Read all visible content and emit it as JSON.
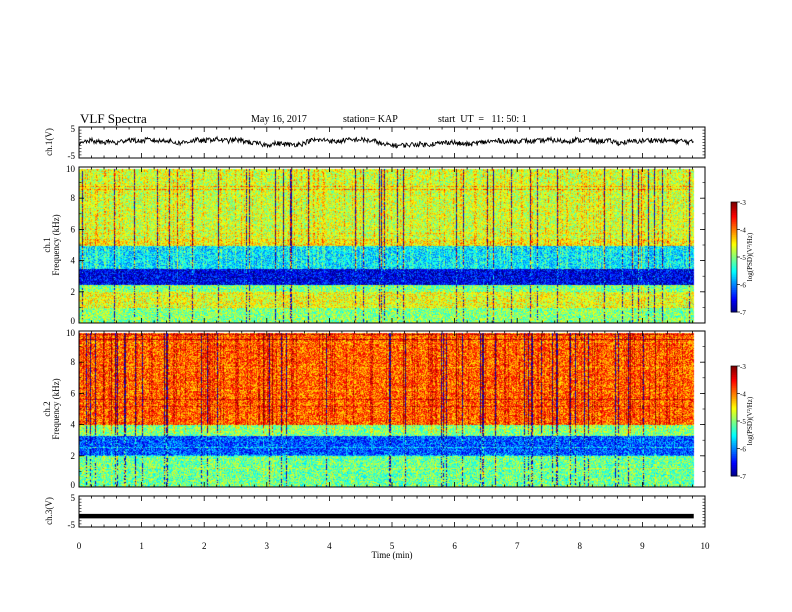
{
  "header": {
    "title": "VLF Spectra",
    "date": "May 16, 2017",
    "station": "station= KAP",
    "start": "start  UT  =   11: 50: 1"
  },
  "chart_data": [
    {
      "type": "line",
      "panel": "ch1-waveform",
      "ylabel": "ch.1(V)",
      "ylim": [
        -5,
        5
      ],
      "yticks": [
        "5",
        "-5"
      ],
      "series": [
        {
          "values": [
            -0.8,
            0.3,
            0.6,
            0.2,
            0.0,
            0.4,
            -0.3,
            0.5,
            1.0,
            0.6,
            0.4,
            0.9,
            0.7,
            0.5,
            0.8,
            0.2,
            -0.2,
            0.1,
            0.5,
            0.8,
            0.4,
            0.9,
            1.1,
            0.8,
            0.5,
            0.9,
            0.6,
            0.3,
            -0.2,
            -0.4,
            -0.8,
            -0.5,
            -0.3,
            -0.5,
            -0.7,
            -0.6,
            -0.4,
            0.5,
            0.8,
            0.7,
            0.9,
            0.2,
            0.4,
            0.9,
            0.7,
            1.0,
            0.8,
            0.5,
            0.3,
            -0.8,
            -0.7,
            -1.0,
            -0.9,
            -0.8,
            -0.6,
            -0.5,
            -0.7,
            -0.4,
            -0.3,
            0.0,
            0.2,
            -0.3,
            -0.5,
            -0.6,
            -0.2,
            0.1,
            0.3,
            0.4,
            0.6,
            0.2,
            0.3,
            0.6,
            0.5,
            0.3,
            0.5,
            0.7,
            0.8,
            0.6,
            0.4,
            0.5,
            0.9,
            0.6,
            0.8,
            0.4,
            0.5,
            0.6,
            0.3,
            -0.2,
            0.1,
            0.3,
            0.4,
            0.6,
            0.8,
            0.7,
            0.5,
            0.6,
            0.4,
            0.5,
            0.2,
            0.1
          ]
        }
      ]
    },
    {
      "type": "heatmap",
      "panel": "ch1-spectrogram",
      "ylabel": "ch.1 Frequency (kHz)",
      "ylim": [
        0,
        10
      ],
      "yticks": [
        "0",
        "2",
        "4",
        "6",
        "8",
        "10"
      ],
      "colorbar_label": "log(PSD)(V²/Hz)",
      "colorbar_range": [
        -7,
        -3
      ],
      "colorbar_ticks": [
        "-3",
        "-4",
        "-5",
        "-6",
        "-7"
      ],
      "mean_level_by_frequency_kHz": {
        "0-1": -5.0,
        "1-2": -4.6,
        "2-2.5": -5.0,
        "2.5-3.5": -6.6,
        "3.5-5": -5.6,
        "5-5.5": -4.5,
        "5.5-10": -4.7
      }
    },
    {
      "type": "heatmap",
      "panel": "ch2-spectrogram",
      "ylabel": "ch.2 Frequency (kHz)",
      "ylim": [
        0,
        10
      ],
      "yticks": [
        "0",
        "2",
        "4",
        "6",
        "8",
        "10"
      ],
      "colorbar_label": "log(PSD)(V²/Hz)",
      "colorbar_range": [
        -7,
        -3
      ],
      "colorbar_ticks": [
        "-3",
        "-4",
        "-5",
        "-6",
        "-7"
      ],
      "mean_level_by_frequency_kHz": {
        "0-2": -5.1,
        "2-3.3": -6.2,
        "3.3-4": -5.0,
        "4-10": -3.9
      }
    },
    {
      "type": "line",
      "panel": "ch3-waveform",
      "ylabel": "ch.3(V)",
      "ylim": [
        -5,
        5
      ],
      "yticks": [
        "5",
        "-5"
      ],
      "series": [
        {
          "values": [
            -1.5,
            -1.5
          ]
        }
      ]
    }
  ],
  "x_axis": {
    "label": "Time (min)",
    "xlim": [
      0,
      10
    ],
    "ticks": [
      "0",
      "1",
      "2",
      "3",
      "4",
      "5",
      "6",
      "7",
      "8",
      "9",
      "10"
    ]
  }
}
